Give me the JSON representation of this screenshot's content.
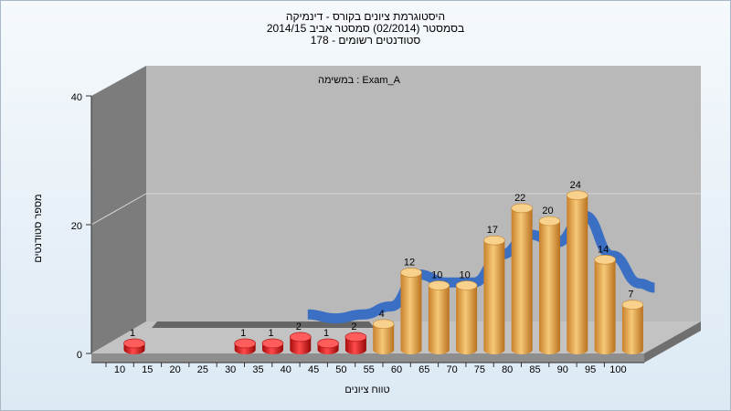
{
  "title_lines": [
    "היסטוגרמת ציונים בקורס - דינמיקה",
    "בסמסטר  (02/2014)  סמסטר אביב 2014/15",
    "סטודנטים רשומים - 178"
  ],
  "chart_data": {
    "type": "bar",
    "annotation": "במשימה : Exam_A",
    "xlabel": "טווח ציונים",
    "ylabel": "מספר סטודנטים",
    "ylim": [
      0,
      40
    ],
    "yticks": [
      0,
      20,
      40
    ],
    "grid": true,
    "categories": [
      "10",
      "15",
      "20",
      "25",
      "30",
      "35",
      "40",
      "45",
      "50",
      "55",
      "60",
      "65",
      "70",
      "75",
      "80",
      "85",
      "90",
      "95",
      "100"
    ],
    "values": [
      1,
      null,
      null,
      null,
      1,
      1,
      2,
      1,
      2,
      4,
      12,
      10,
      10,
      17,
      22,
      20,
      24,
      14,
      7
    ],
    "failing_threshold": 55,
    "colors": {
      "failing": "#d41414",
      "passing": "#e9a43f",
      "trend": "#3b6fc4"
    }
  }
}
